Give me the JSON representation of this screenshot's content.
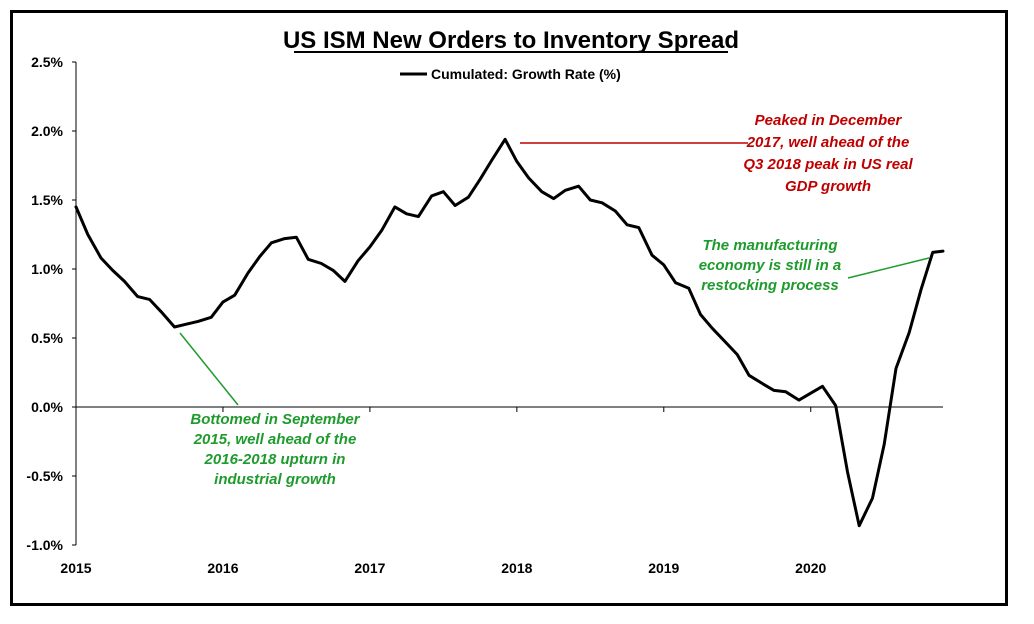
{
  "chart_data": {
    "type": "line",
    "title": "US ISM New Orders to Inventory Spread",
    "xlabel": "",
    "ylabel": "",
    "ylim": [
      -1.0,
      2.5
    ],
    "yticks": [
      -1.0,
      -0.5,
      0.0,
      0.5,
      1.0,
      1.5,
      2.0,
      2.5
    ],
    "ytick_labels": [
      "-1.0%",
      "-0.5%",
      "0.0%",
      "0.5%",
      "1.0%",
      "1.5%",
      "2.0%",
      "2.5%"
    ],
    "xlim": [
      2015.0,
      2020.9
    ],
    "xticks": [
      2015,
      2016,
      2017,
      2018,
      2019,
      2020
    ],
    "xtick_labels": [
      "2015",
      "2016",
      "2017",
      "2018",
      "2019",
      "2020"
    ],
    "legend_position": "top",
    "grid": false,
    "series": [
      {
        "name": "Cumulated: Growth Rate (%)",
        "color": "#000000",
        "x": [
          2015.0,
          2015.08,
          2015.17,
          2015.25,
          2015.33,
          2015.42,
          2015.5,
          2015.58,
          2015.67,
          2015.75,
          2015.83,
          2015.92,
          2016.0,
          2016.08,
          2016.17,
          2016.25,
          2016.33,
          2016.42,
          2016.5,
          2016.58,
          2016.67,
          2016.75,
          2016.83,
          2016.92,
          2017.0,
          2017.08,
          2017.17,
          2017.25,
          2017.33,
          2017.42,
          2017.5,
          2017.58,
          2017.67,
          2017.75,
          2017.83,
          2017.92,
          2018.0,
          2018.08,
          2018.17,
          2018.25,
          2018.33,
          2018.42,
          2018.5,
          2018.58,
          2018.67,
          2018.75,
          2018.83,
          2018.92,
          2019.0,
          2019.08,
          2019.17,
          2019.25,
          2019.33,
          2019.42,
          2019.5,
          2019.58,
          2019.67,
          2019.75,
          2019.83,
          2019.92,
          2020.0,
          2020.08,
          2020.17,
          2020.25,
          2020.33,
          2020.42,
          2020.5,
          2020.58,
          2020.67,
          2020.75,
          2020.83,
          2020.9
        ],
        "values": [
          1.45,
          1.25,
          1.08,
          0.99,
          0.91,
          0.8,
          0.78,
          0.69,
          0.58,
          0.6,
          0.62,
          0.65,
          0.76,
          0.81,
          0.97,
          1.09,
          1.19,
          1.22,
          1.23,
          1.07,
          1.04,
          0.99,
          0.91,
          1.06,
          1.16,
          1.28,
          1.45,
          1.4,
          1.38,
          1.53,
          1.56,
          1.46,
          1.52,
          1.65,
          1.79,
          1.94,
          1.78,
          1.66,
          1.56,
          1.51,
          1.57,
          1.6,
          1.5,
          1.48,
          1.42,
          1.32,
          1.3,
          1.1,
          1.03,
          0.9,
          0.86,
          0.67,
          0.57,
          0.47,
          0.38,
          0.23,
          0.17,
          0.12,
          0.11,
          0.05,
          0.1,
          0.15,
          0.01,
          -0.47,
          -0.86,
          -0.66,
          -0.27,
          0.28,
          0.54,
          0.85,
          1.12,
          1.13
        ]
      }
    ],
    "annotations": [
      {
        "id": "peak",
        "lines": [
          "Peaked in December",
          "2017, well ahead of the",
          "Q3 2018 peak in US real",
          "GDP growth"
        ],
        "color": "#c00000",
        "target": [
          2017.97,
          1.92
        ]
      },
      {
        "id": "restocking",
        "lines": [
          "The manufacturing",
          "economy is still in a",
          "restocking process"
        ],
        "color": "#1e9b2d",
        "target": [
          2020.8,
          1.08
        ]
      },
      {
        "id": "bottom",
        "lines": [
          "Bottomed in September",
          "2015, well ahead of the",
          "2016-2018 upturn in",
          "industrial growth"
        ],
        "color": "#1e9b2d",
        "target": [
          2015.65,
          0.55
        ]
      }
    ]
  }
}
